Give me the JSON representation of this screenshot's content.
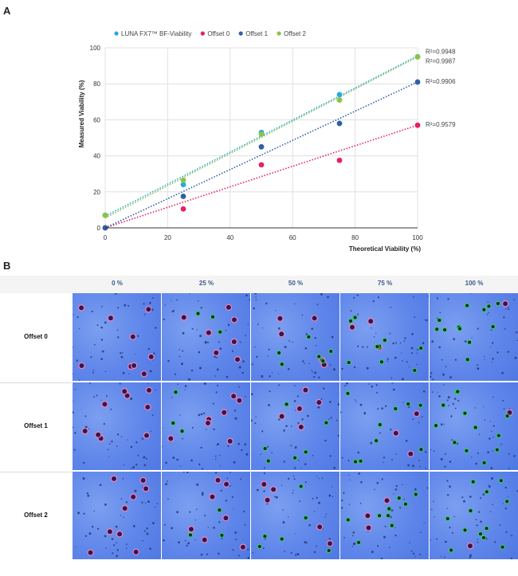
{
  "panels": {
    "a_label": "A",
    "b_label": "B"
  },
  "chart_data": {
    "type": "scatter",
    "xlabel": "Theoretical Viability (%)",
    "ylabel": "Measured Viability (%)",
    "xlim": [
      0,
      100
    ],
    "ylim": [
      0,
      100
    ],
    "xticks": [
      0,
      20,
      40,
      60,
      80,
      100
    ],
    "yticks": [
      0,
      20,
      40,
      60,
      80,
      100
    ],
    "grid": true,
    "legend_position": "top",
    "x": [
      0,
      25,
      50,
      75,
      100
    ],
    "series": [
      {
        "name": "LUNA FX7™ BF-Viability",
        "color": "#29a9e1",
        "values": [
          7,
          24,
          53,
          74,
          95
        ],
        "r2": "R²=0.9948",
        "trend": [
          6.5,
          95.5
        ]
      },
      {
        "name": "Offset 0",
        "color": "#e91e63",
        "values": [
          0,
          10.5,
          35,
          37.5,
          57
        ],
        "r2": "R²=0.9579",
        "trend": [
          0,
          57
        ]
      },
      {
        "name": "Offset 1",
        "color": "#2e5fa8",
        "values": [
          0,
          17.5,
          45,
          58,
          81
        ],
        "r2": "R²=0.9906",
        "trend": [
          0,
          81
        ]
      },
      {
        "name": "Offset 2",
        "color": "#8bc34a",
        "values": [
          7,
          26.5,
          52,
          71,
          95
        ],
        "r2": "R²=0.9987",
        "trend": [
          5.5,
          95
        ]
      }
    ]
  },
  "micrographs": {
    "columns": [
      "0 %",
      "25 %",
      "50 %",
      "75 %",
      "100 %"
    ],
    "rows": [
      "Offset 0",
      "Offset 1",
      "Offset 2"
    ],
    "live_cells_per_column": [
      0,
      3,
      6,
      9,
      12
    ],
    "dead_cells_per_column": [
      9,
      7,
      5,
      3,
      1
    ]
  }
}
